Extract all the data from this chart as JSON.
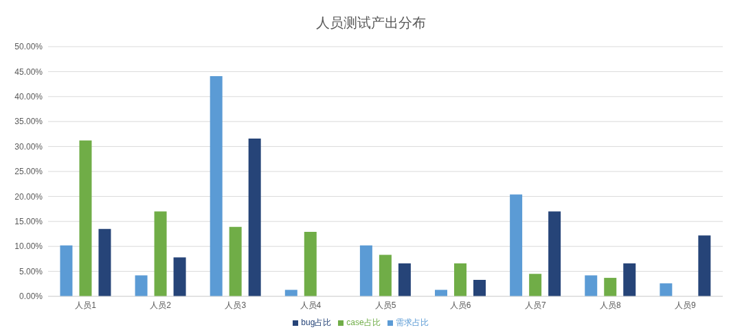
{
  "chart_data": {
    "type": "bar",
    "title": "人员测试产出分布",
    "categories": [
      "人员1",
      "人员2",
      "人员3",
      "人员4",
      "人员5",
      "人员6",
      "人员7",
      "人员8",
      "人员9"
    ],
    "series": [
      {
        "name": "需求占比",
        "color": "#5b9bd5",
        "values": [
          10.2,
          4.2,
          44.1,
          1.3,
          10.2,
          1.3,
          20.4,
          4.2,
          2.6
        ]
      },
      {
        "name": "case占比",
        "color": "#70ad47",
        "values": [
          31.2,
          17.0,
          13.9,
          12.9,
          8.3,
          6.6,
          4.5,
          3.7,
          0
        ]
      },
      {
        "name": "bug占比",
        "color": "#264478",
        "values": [
          13.5,
          7.8,
          31.6,
          0,
          6.6,
          3.3,
          17.0,
          6.6,
          12.2
        ]
      }
    ],
    "ylim": [
      0,
      50
    ],
    "yticks": [
      {
        "value": 0,
        "label": "0.00%"
      },
      {
        "value": 5,
        "label": "5.00%"
      },
      {
        "value": 10,
        "label": "10.00%"
      },
      {
        "value": 15,
        "label": "15.00%"
      },
      {
        "value": 20,
        "label": "20.00%"
      },
      {
        "value": 25,
        "label": "25.00%"
      },
      {
        "value": 30,
        "label": "30.00%"
      },
      {
        "value": 35,
        "label": "35.00%"
      },
      {
        "value": 40,
        "label": "40.00%"
      },
      {
        "value": 45,
        "label": "45.00%"
      },
      {
        "value": 50,
        "label": "50.00%"
      }
    ],
    "grid": "y",
    "legend": "bottom"
  }
}
